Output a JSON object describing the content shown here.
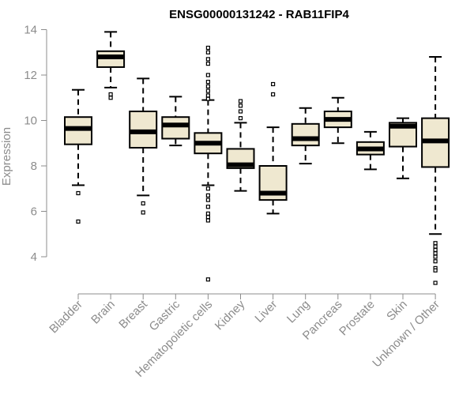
{
  "chart_data": {
    "type": "boxplot",
    "title": "ENSG00000131242 - RAB11FIP4",
    "xlabel": "",
    "ylabel": "Expression",
    "ylim": [
      3,
      14.2
    ],
    "yticks": [
      4,
      6,
      8,
      10,
      12,
      14
    ],
    "box_fill": "#efe8d0",
    "categories": [
      "Bladder",
      "Brain",
      "Breast",
      "Gastric",
      "Hematopoietic cells",
      "Kidney",
      "Liver",
      "Lung",
      "Pancreas",
      "Prostate",
      "Skin",
      "Unknown / Other"
    ],
    "boxes": [
      {
        "q1": 8.95,
        "median": 9.65,
        "q3": 10.15,
        "whisker_low": 7.15,
        "whisker_high": 11.35,
        "outliers": [
          6.8,
          5.55
        ]
      },
      {
        "q1": 12.35,
        "median": 12.8,
        "q3": 13.05,
        "whisker_low": 11.45,
        "whisker_high": 13.9,
        "outliers": [
          11.15,
          11.0
        ]
      },
      {
        "q1": 8.8,
        "median": 9.5,
        "q3": 10.4,
        "whisker_low": 6.7,
        "whisker_high": 11.85,
        "outliers": [
          6.35,
          5.95
        ]
      },
      {
        "q1": 9.2,
        "median": 9.8,
        "q3": 10.15,
        "whisker_low": 8.9,
        "whisker_high": 11.05,
        "outliers": []
      },
      {
        "q1": 8.55,
        "median": 9.0,
        "q3": 9.45,
        "whisker_low": 7.15,
        "whisker_high": 10.9,
        "outliers": [
          13.2,
          13.0,
          12.7,
          12.5,
          12.0,
          11.7,
          11.5,
          11.3,
          11.1,
          10.95,
          7.0,
          6.7,
          6.5,
          6.2,
          5.9,
          5.75,
          5.6,
          3.0
        ]
      },
      {
        "q1": 7.9,
        "median": 8.05,
        "q3": 8.75,
        "whisker_low": 6.9,
        "whisker_high": 9.9,
        "outliers": [
          10.85,
          10.65,
          10.4,
          10.1
        ]
      },
      {
        "q1": 6.5,
        "median": 6.8,
        "q3": 8.0,
        "whisker_low": 5.9,
        "whisker_high": 9.7,
        "outliers": [
          11.6,
          11.15
        ]
      },
      {
        "q1": 8.9,
        "median": 9.2,
        "q3": 9.85,
        "whisker_low": 8.1,
        "whisker_high": 10.55,
        "outliers": []
      },
      {
        "q1": 9.7,
        "median": 10.05,
        "q3": 10.4,
        "whisker_low": 9.0,
        "whisker_high": 11.0,
        "outliers": []
      },
      {
        "q1": 8.5,
        "median": 8.75,
        "q3": 9.05,
        "whisker_low": 7.85,
        "whisker_high": 9.5,
        "outliers": []
      },
      {
        "q1": 8.85,
        "median": 9.75,
        "q3": 9.9,
        "whisker_low": 7.45,
        "whisker_high": 10.1,
        "outliers": []
      },
      {
        "q1": 7.95,
        "median": 9.1,
        "q3": 10.1,
        "whisker_low": 5.0,
        "whisker_high": 12.8,
        "outliers": [
          4.6,
          4.45,
          4.3,
          4.15,
          4.0,
          3.8,
          3.5,
          3.4,
          2.85
        ]
      }
    ]
  }
}
